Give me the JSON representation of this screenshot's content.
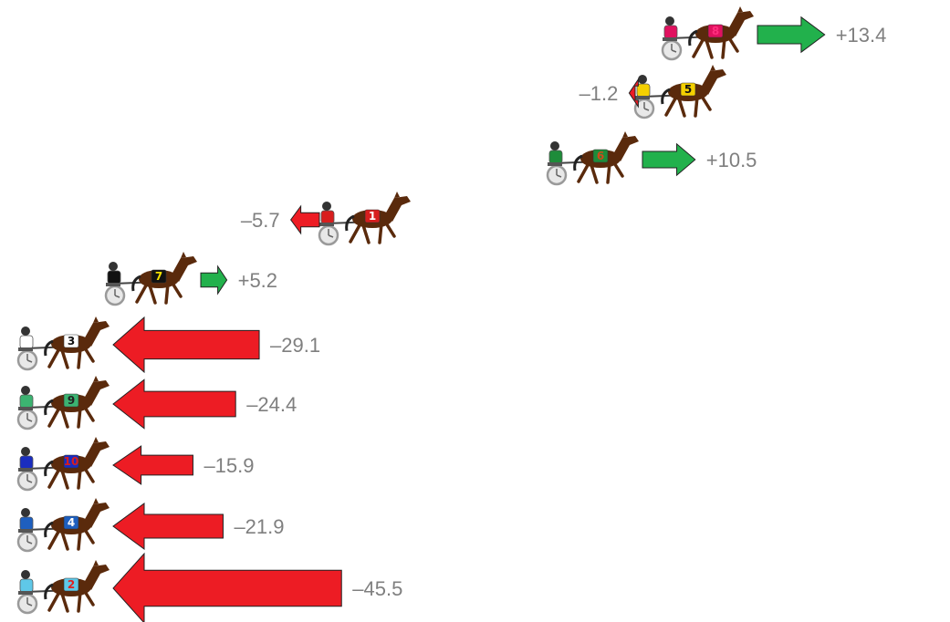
{
  "chart_data": {
    "type": "bar",
    "title": "",
    "xlabel": "",
    "ylabel": "",
    "series": [
      {
        "horse": "8",
        "saddle_color": "#e0115f",
        "number_color": "#ff2e7e",
        "change": 13.4,
        "label": "+13.4"
      },
      {
        "horse": "5",
        "saddle_color": "#f4d000",
        "number_color": "#111111",
        "change": -1.2,
        "label": "–1.2"
      },
      {
        "horse": "6",
        "saddle_color": "#1e8c3a",
        "number_color": "#d04a1a",
        "change": 10.5,
        "label": "+10.5"
      },
      {
        "horse": "1",
        "saddle_color": "#d81e1e",
        "number_color": "#ffffff",
        "change": -5.7,
        "label": "–5.7"
      },
      {
        "horse": "7",
        "saddle_color": "#111111",
        "number_color": "#f4e000",
        "change": 5.2,
        "label": "+5.2"
      },
      {
        "horse": "3",
        "saddle_color": "#ffffff",
        "number_color": "#111111",
        "change": -29.1,
        "label": "–29.1"
      },
      {
        "horse": "9",
        "saddle_color": "#3cb371",
        "number_color": "#222222",
        "change": -24.4,
        "label": "–24.4"
      },
      {
        "horse": "10",
        "saddle_color": "#1a2dbf",
        "number_color": "#d81e1e",
        "change": -15.9,
        "label": "–15.9"
      },
      {
        "horse": "4",
        "saddle_color": "#1e5fbf",
        "number_color": "#ffffff",
        "change": -21.9,
        "label": "–21.9"
      },
      {
        "horse": "2",
        "saddle_color": "#5fc8e8",
        "number_color": "#e02020",
        "change": -45.5,
        "label": "–45.5"
      }
    ],
    "colors": {
      "gain": "#22b14c",
      "loss": "#ed1c24",
      "label": "#7f7f7f",
      "horse": "#5a2a0c",
      "sulky": "#9a9a9a"
    }
  }
}
